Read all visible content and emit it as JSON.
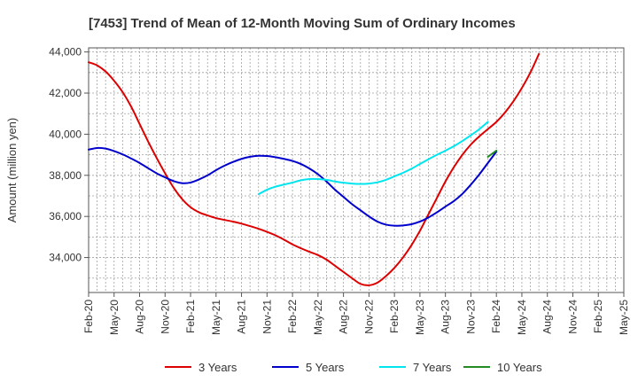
{
  "chart_data": {
    "type": "line",
    "title": "[7453]  Trend of Mean of 12-Month Moving Sum of Ordinary Incomes",
    "xlabel": "",
    "ylabel": "Amount (million yen)",
    "ylim": [
      32300,
      44200
    ],
    "yticks": [
      34000,
      36000,
      38000,
      40000,
      42000,
      44000
    ],
    "ytick_labels": [
      "34,000",
      "36,000",
      "38,000",
      "40,000",
      "42,000",
      "44,000"
    ],
    "xlim": [
      0,
      63
    ],
    "xticks": [
      0,
      3,
      6,
      9,
      12,
      15,
      18,
      21,
      24,
      27,
      30,
      33,
      36,
      39,
      42,
      45,
      48,
      51,
      54,
      57,
      60,
      63
    ],
    "xtick_labels": [
      "Feb-20",
      "May-20",
      "Aug-20",
      "Nov-20",
      "Feb-21",
      "May-21",
      "Aug-21",
      "Nov-21",
      "Feb-22",
      "May-22",
      "Aug-22",
      "Nov-22",
      "Feb-23",
      "May-23",
      "Aug-23",
      "Nov-23",
      "Feb-24",
      "May-24",
      "Aug-24",
      "Nov-24",
      "Feb-25",
      "May-25"
    ],
    "grid": true,
    "legend_position": "bottom",
    "series": [
      {
        "name": "3 Years",
        "color": "#dd0000",
        "points": [
          [
            0,
            43500
          ],
          [
            1,
            43350
          ],
          [
            2,
            43050
          ],
          [
            3,
            42600
          ],
          [
            4,
            42050
          ],
          [
            5,
            41350
          ],
          [
            6,
            40500
          ],
          [
            7,
            39650
          ],
          [
            8,
            38850
          ],
          [
            9,
            38100
          ],
          [
            10,
            37400
          ],
          [
            11,
            36850
          ],
          [
            12,
            36450
          ],
          [
            13,
            36200
          ],
          [
            14,
            36050
          ],
          [
            15,
            35920
          ],
          [
            16,
            35830
          ],
          [
            17,
            35750
          ],
          [
            18,
            35650
          ],
          [
            19,
            35530
          ],
          [
            20,
            35400
          ],
          [
            21,
            35250
          ],
          [
            22,
            35080
          ],
          [
            23,
            34870
          ],
          [
            24,
            34640
          ],
          [
            25,
            34450
          ],
          [
            26,
            34280
          ],
          [
            27,
            34120
          ],
          [
            28,
            33900
          ],
          [
            29,
            33600
          ],
          [
            30,
            33300
          ],
          [
            31,
            33000
          ],
          [
            32,
            32720
          ],
          [
            33,
            32650
          ],
          [
            34,
            32780
          ],
          [
            35,
            33100
          ],
          [
            36,
            33500
          ],
          [
            37,
            34000
          ],
          [
            38,
            34600
          ],
          [
            39,
            35300
          ],
          [
            40,
            36100
          ],
          [
            41,
            36900
          ],
          [
            42,
            37700
          ],
          [
            43,
            38400
          ],
          [
            44,
            39000
          ],
          [
            45,
            39500
          ],
          [
            46,
            39900
          ],
          [
            47,
            40250
          ],
          [
            48,
            40600
          ],
          [
            49,
            41050
          ],
          [
            50,
            41600
          ],
          [
            51,
            42250
          ],
          [
            52,
            43000
          ],
          [
            53,
            43900
          ]
        ]
      },
      {
        "name": "5 Years",
        "color": "#0000cc",
        "points": [
          [
            0,
            39250
          ],
          [
            1,
            39330
          ],
          [
            2,
            39300
          ],
          [
            3,
            39180
          ],
          [
            4,
            39020
          ],
          [
            5,
            38820
          ],
          [
            6,
            38600
          ],
          [
            7,
            38350
          ],
          [
            8,
            38100
          ],
          [
            9,
            37900
          ],
          [
            10,
            37720
          ],
          [
            11,
            37620
          ],
          [
            12,
            37650
          ],
          [
            13,
            37800
          ],
          [
            14,
            38000
          ],
          [
            15,
            38250
          ],
          [
            16,
            38470
          ],
          [
            17,
            38650
          ],
          [
            18,
            38800
          ],
          [
            19,
            38900
          ],
          [
            20,
            38950
          ],
          [
            21,
            38940
          ],
          [
            22,
            38880
          ],
          [
            23,
            38800
          ],
          [
            24,
            38700
          ],
          [
            25,
            38550
          ],
          [
            26,
            38330
          ],
          [
            27,
            38050
          ],
          [
            28,
            37700
          ],
          [
            29,
            37300
          ],
          [
            30,
            36950
          ],
          [
            31,
            36600
          ],
          [
            32,
            36300
          ],
          [
            33,
            36000
          ],
          [
            34,
            35750
          ],
          [
            35,
            35600
          ],
          [
            36,
            35550
          ],
          [
            37,
            35560
          ],
          [
            38,
            35620
          ],
          [
            39,
            35750
          ],
          [
            40,
            35950
          ],
          [
            41,
            36200
          ],
          [
            42,
            36480
          ],
          [
            43,
            36750
          ],
          [
            44,
            37100
          ],
          [
            45,
            37550
          ],
          [
            46,
            38050
          ],
          [
            47,
            38600
          ],
          [
            48,
            39150
          ]
        ]
      },
      {
        "name": "7 Years",
        "color": "#00e5ee",
        "points": [
          [
            20,
            37080
          ],
          [
            21,
            37300
          ],
          [
            22,
            37450
          ],
          [
            23,
            37550
          ],
          [
            24,
            37650
          ],
          [
            25,
            37760
          ],
          [
            26,
            37820
          ],
          [
            27,
            37820
          ],
          [
            28,
            37780
          ],
          [
            29,
            37700
          ],
          [
            30,
            37640
          ],
          [
            31,
            37600
          ],
          [
            32,
            37580
          ],
          [
            33,
            37600
          ],
          [
            34,
            37660
          ],
          [
            35,
            37780
          ],
          [
            36,
            37950
          ],
          [
            37,
            38120
          ],
          [
            38,
            38320
          ],
          [
            39,
            38550
          ],
          [
            40,
            38780
          ],
          [
            41,
            39000
          ],
          [
            42,
            39200
          ],
          [
            43,
            39420
          ],
          [
            44,
            39670
          ],
          [
            45,
            39950
          ],
          [
            46,
            40250
          ],
          [
            47,
            40600
          ]
        ]
      },
      {
        "name": "10 Years",
        "color": "#228b22",
        "points": [
          [
            47,
            38900
          ],
          [
            48,
            39200
          ]
        ]
      }
    ]
  }
}
